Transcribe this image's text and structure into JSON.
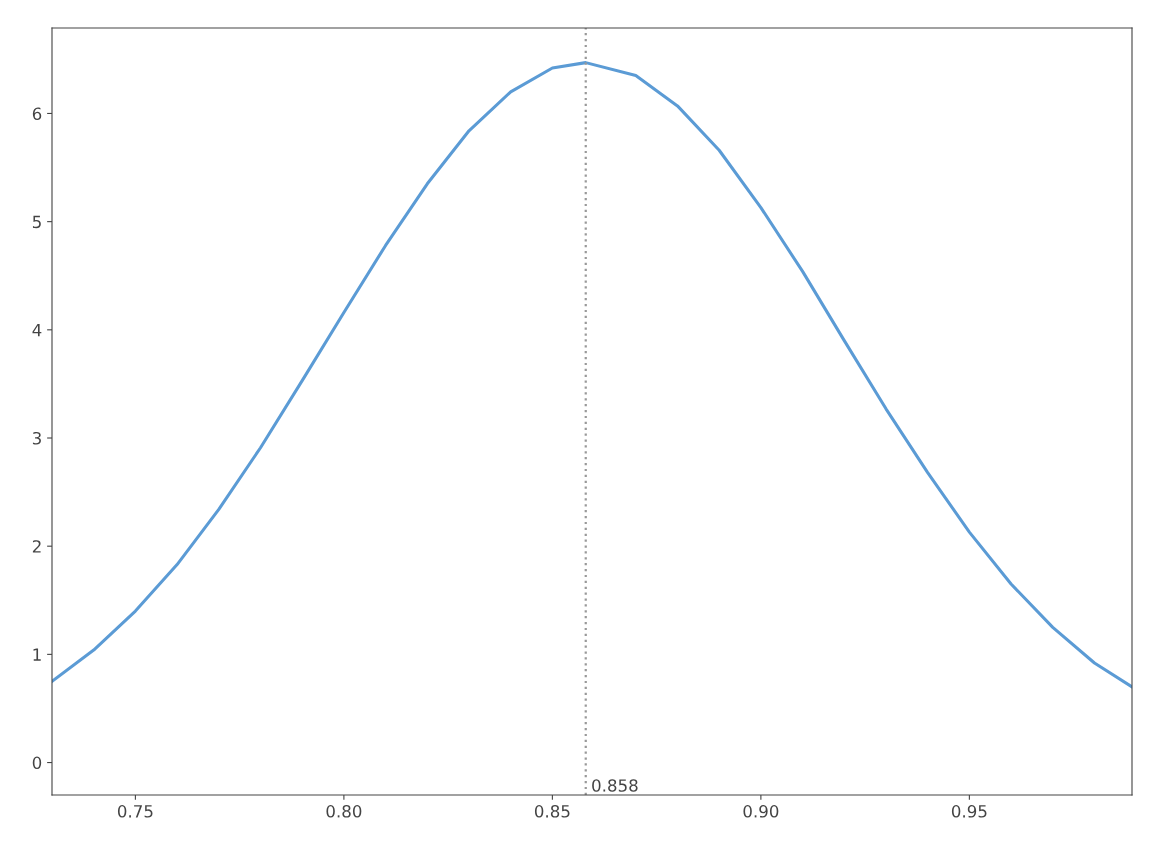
{
  "chart_data": {
    "type": "line",
    "x": [
      0.73,
      0.74,
      0.75,
      0.76,
      0.77,
      0.78,
      0.79,
      0.8,
      0.81,
      0.82,
      0.83,
      0.84,
      0.85,
      0.858,
      0.87,
      0.88,
      0.89,
      0.9,
      0.91,
      0.92,
      0.93,
      0.94,
      0.95,
      0.96,
      0.97,
      0.98,
      0.989
    ],
    "series": [
      {
        "color": "#5b9bd5",
        "values": [
          0.75,
          1.04,
          1.4,
          1.83,
          2.34,
          2.91,
          3.53,
          4.16,
          4.78,
          5.35,
          5.84,
          6.2,
          6.42,
          6.47,
          6.35,
          6.07,
          5.66,
          5.13,
          4.54,
          3.9,
          3.27,
          2.68,
          2.13,
          1.65,
          1.25,
          0.92,
          0.7
        ]
      }
    ],
    "xlim": [
      0.73,
      0.989
    ],
    "ylim": [
      -0.3,
      6.79
    ],
    "xticks": [
      {
        "value": 0.75,
        "label": "0.75"
      },
      {
        "value": 0.8,
        "label": "0.80"
      },
      {
        "value": 0.85,
        "label": "0.85"
      },
      {
        "value": 0.9,
        "label": "0.90"
      },
      {
        "value": 0.95,
        "label": "0.95"
      }
    ],
    "yticks": [
      0,
      1,
      2,
      3,
      4,
      5,
      6
    ],
    "ref_lines": [
      {
        "axis": "x",
        "value": 0.858,
        "label": "0.858",
        "color": "#999999",
        "line_style": "dotted"
      }
    ],
    "grid": false,
    "legend": false,
    "marker": "none",
    "line_style": "solid"
  }
}
